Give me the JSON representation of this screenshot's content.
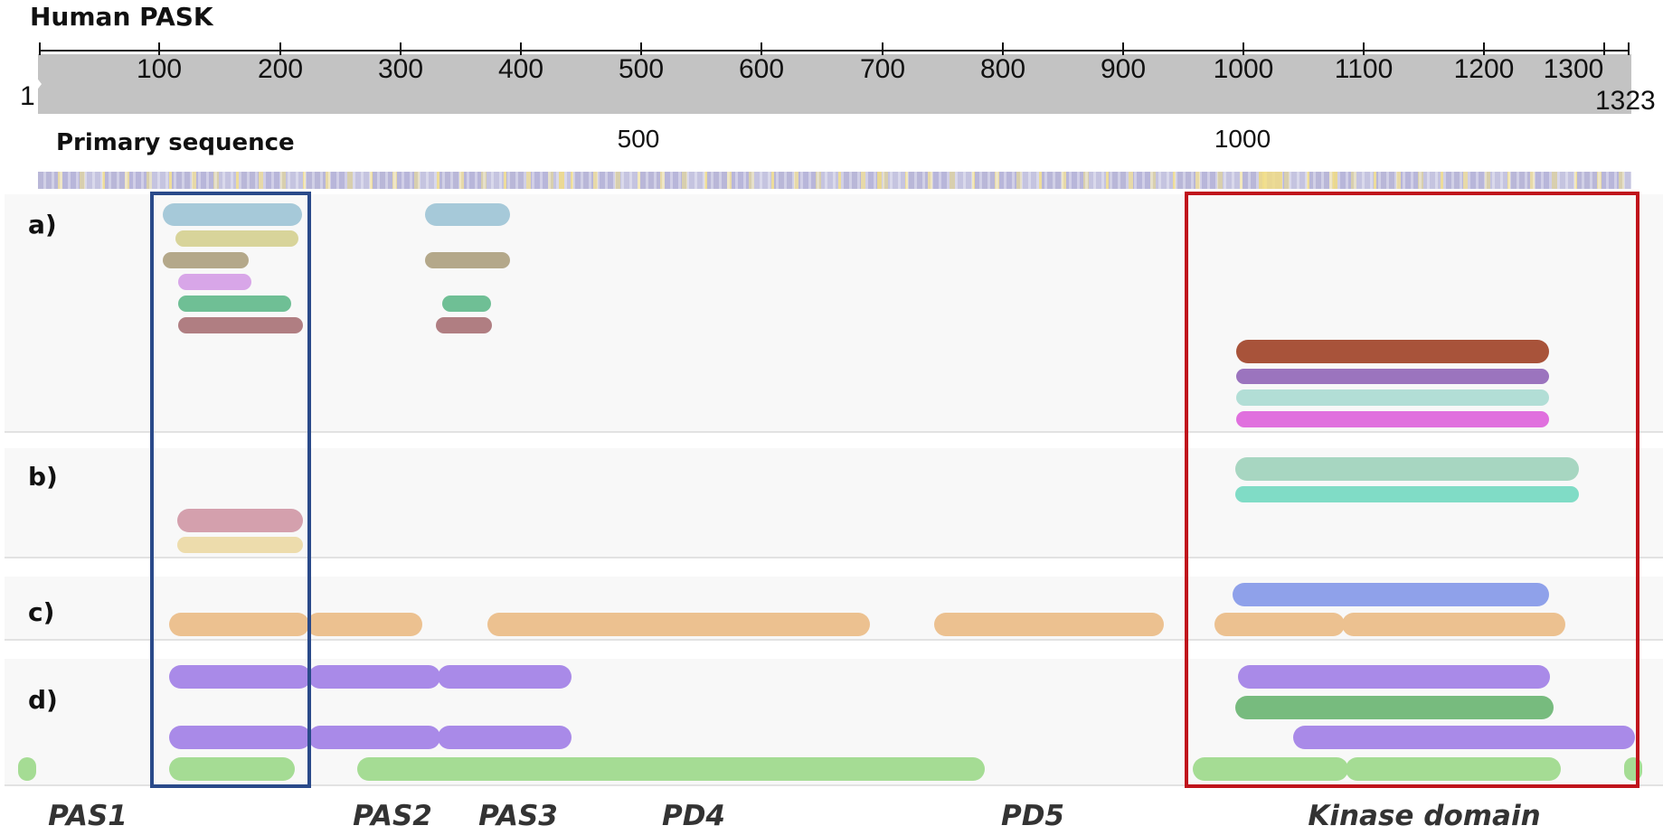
{
  "title": "Human PASK",
  "ruler": {
    "start": "1",
    "end": "1323",
    "ticks": [
      "100",
      "200",
      "300",
      "400",
      "500",
      "600",
      "700",
      "800",
      "900",
      "1000",
      "1100",
      "1200",
      "1300"
    ]
  },
  "primary_sequence": {
    "label": "Primary sequence",
    "markers": [
      "500",
      "1000"
    ]
  },
  "rows": [
    {
      "label": "a)"
    },
    {
      "label": "b)"
    },
    {
      "label": "c)"
    },
    {
      "label": "d)"
    }
  ],
  "domains": [
    {
      "label": "PAS1",
      "color": "#333333"
    },
    {
      "label": "PAS2",
      "color": "#333333"
    },
    {
      "label": "PAS3",
      "color": "#333333"
    },
    {
      "label": "PD4",
      "color": "#333333"
    },
    {
      "label": "PD5",
      "color": "#333333"
    },
    {
      "label": "Kinase domain",
      "color": "#333333"
    }
  ],
  "highlights": {
    "blue_box_color": "#2a4a8a",
    "red_box_color": "#c0141c"
  }
}
